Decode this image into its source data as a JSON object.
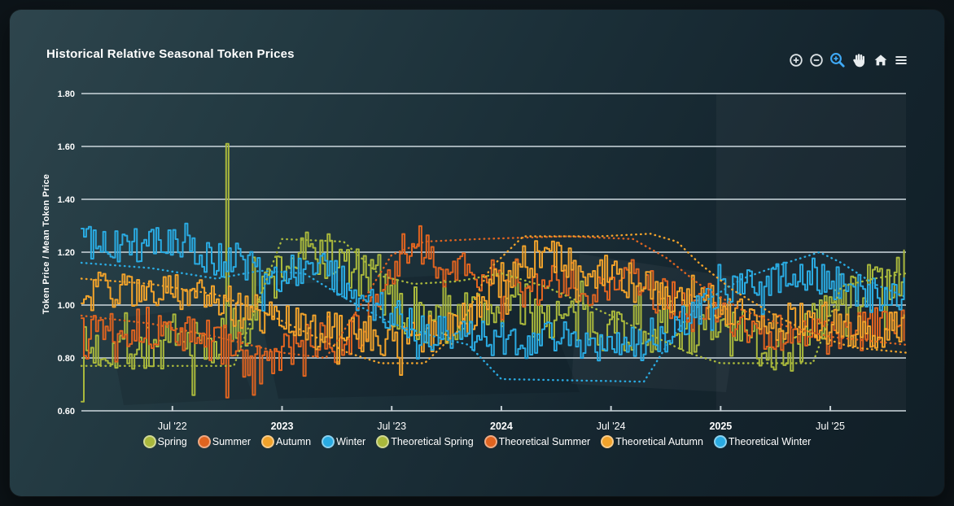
{
  "page": {
    "title": "Historical Relative Seasonal Token Prices"
  },
  "toolbar": {
    "icon_color": "#dde3e6",
    "active_color": "#3fa9f5",
    "icons": [
      "zoom-in-icon",
      "zoom-out-icon",
      "zoom-select-icon",
      "pan-icon",
      "reset-home-icon",
      "menu-icon"
    ]
  },
  "chart_data": {
    "type": "line",
    "title": "Historical Relative Seasonal Token Prices",
    "xlabel": "",
    "ylabel": "Token Price / Mean Token Price",
    "ylim": [
      0.6,
      1.8
    ],
    "x_domain": [
      2022.085,
      2025.845
    ],
    "grid": true,
    "legend_position": "bottom",
    "y_ticks": [
      {
        "label": "1.80",
        "value": 1.8
      },
      {
        "label": "1.60",
        "value": 1.6
      },
      {
        "label": "1.40",
        "value": 1.4
      },
      {
        "label": "1.20",
        "value": 1.2
      },
      {
        "label": "1.00",
        "value": 1.0
      },
      {
        "label": "0.80",
        "value": 0.8
      },
      {
        "label": "0.60",
        "value": 0.6
      }
    ],
    "x_ticks": [
      {
        "label": "Jul '22",
        "year": 2022.5,
        "bold": false
      },
      {
        "label": "2023",
        "year": 2023.0,
        "bold": true
      },
      {
        "label": "Jul '23",
        "year": 2023.5,
        "bold": false
      },
      {
        "label": "2024",
        "year": 2024.0,
        "bold": true
      },
      {
        "label": "Jul '24",
        "year": 2024.5,
        "bold": false
      },
      {
        "label": "2025",
        "year": 2025.0,
        "bold": true
      },
      {
        "label": "Jul '25",
        "year": 2025.5,
        "bold": false
      }
    ],
    "series": [
      {
        "name": "Spring",
        "color": "#a9b83c",
        "style": "solid",
        "noise": 0.1,
        "seed": 7,
        "anchors": [
          [
            2022.085,
            0.82
          ],
          [
            2022.25,
            0.85
          ],
          [
            2022.4,
            0.83
          ],
          [
            2022.55,
            0.85
          ],
          [
            2022.65,
            0.84
          ],
          [
            2022.73,
            0.88
          ],
          [
            2022.78,
            0.93
          ],
          [
            2022.87,
            1.0
          ],
          [
            2022.95,
            1.1
          ],
          [
            2023.06,
            1.18
          ],
          [
            2023.17,
            1.2
          ],
          [
            2023.28,
            1.15
          ],
          [
            2023.4,
            1.09
          ],
          [
            2023.5,
            1.01
          ],
          [
            2023.62,
            0.93
          ],
          [
            2023.75,
            0.95
          ],
          [
            2023.9,
            0.97
          ],
          [
            2024.02,
            1.0
          ],
          [
            2024.15,
            0.97
          ],
          [
            2024.3,
            0.94
          ],
          [
            2024.45,
            0.93
          ],
          [
            2024.6,
            0.91
          ],
          [
            2024.75,
            0.93
          ],
          [
            2024.9,
            0.91
          ],
          [
            2025.05,
            0.89
          ],
          [
            2025.2,
            0.85
          ],
          [
            2025.32,
            0.83
          ],
          [
            2025.42,
            0.92
          ],
          [
            2025.52,
            1.02
          ],
          [
            2025.65,
            1.06
          ],
          [
            2025.845,
            1.09
          ]
        ],
        "events": [
          [
            2022.75,
            1.61
          ]
        ]
      },
      {
        "name": "Summer",
        "color": "#e06420",
        "style": "solid",
        "noise": 0.08,
        "seed": 13,
        "anchors": [
          [
            2022.085,
            0.94
          ],
          [
            2022.3,
            0.92
          ],
          [
            2022.5,
            0.9
          ],
          [
            2022.65,
            0.87
          ],
          [
            2022.73,
            0.85
          ],
          [
            2022.8,
            0.82
          ],
          [
            2022.9,
            0.76
          ],
          [
            2023.0,
            0.82
          ],
          [
            2023.1,
            0.85
          ],
          [
            2023.25,
            0.86
          ],
          [
            2023.35,
            0.9
          ],
          [
            2023.45,
            1.0
          ],
          [
            2023.53,
            1.18
          ],
          [
            2023.6,
            1.24
          ],
          [
            2023.7,
            1.16
          ],
          [
            2023.85,
            1.11
          ],
          [
            2024.0,
            1.09
          ],
          [
            2024.15,
            1.06
          ],
          [
            2024.3,
            1.09
          ],
          [
            2024.45,
            1.06
          ],
          [
            2024.55,
            1.1
          ],
          [
            2024.7,
            1.05
          ],
          [
            2024.85,
            0.98
          ],
          [
            2025.0,
            0.95
          ],
          [
            2025.15,
            0.91
          ],
          [
            2025.35,
            0.89
          ],
          [
            2025.55,
            0.88
          ],
          [
            2025.7,
            0.91
          ],
          [
            2025.845,
            0.92
          ]
        ],
        "events": [
          [
            2022.75,
            0.65
          ],
          [
            2022.87,
            0.66
          ]
        ]
      },
      {
        "name": "Autumn",
        "color": "#f2a32b",
        "style": "solid",
        "noise": 0.075,
        "seed": 29,
        "anchors": [
          [
            2022.085,
            1.05
          ],
          [
            2022.3,
            1.06
          ],
          [
            2022.5,
            1.05
          ],
          [
            2022.65,
            1.03
          ],
          [
            2022.8,
            0.99
          ],
          [
            2022.95,
            0.94
          ],
          [
            2023.1,
            0.91
          ],
          [
            2023.3,
            0.89
          ],
          [
            2023.45,
            0.88
          ],
          [
            2023.6,
            0.87
          ],
          [
            2023.72,
            0.9
          ],
          [
            2023.85,
            0.96
          ],
          [
            2023.95,
            1.05
          ],
          [
            2024.1,
            1.16
          ],
          [
            2024.2,
            1.19
          ],
          [
            2024.35,
            1.14
          ],
          [
            2024.5,
            1.11
          ],
          [
            2024.65,
            1.07
          ],
          [
            2024.8,
            1.03
          ],
          [
            2024.95,
            1.01
          ],
          [
            2025.1,
            0.98
          ],
          [
            2025.25,
            0.94
          ],
          [
            2025.4,
            0.94
          ],
          [
            2025.55,
            0.9
          ],
          [
            2025.7,
            0.9
          ],
          [
            2025.845,
            0.91
          ]
        ],
        "events": []
      },
      {
        "name": "Winter",
        "color": "#2aabe2",
        "style": "solid",
        "noise": 0.07,
        "seed": 41,
        "anchors": [
          [
            2022.085,
            1.24
          ],
          [
            2022.25,
            1.23
          ],
          [
            2022.4,
            1.24
          ],
          [
            2022.55,
            1.21
          ],
          [
            2022.68,
            1.16
          ],
          [
            2022.8,
            1.17
          ],
          [
            2022.92,
            1.1
          ],
          [
            2023.05,
            1.14
          ],
          [
            2023.18,
            1.13
          ],
          [
            2023.32,
            1.06
          ],
          [
            2023.45,
            0.99
          ],
          [
            2023.55,
            0.94
          ],
          [
            2023.68,
            0.9
          ],
          [
            2023.8,
            0.88
          ],
          [
            2023.95,
            0.87
          ],
          [
            2024.1,
            0.86
          ],
          [
            2024.25,
            0.87
          ],
          [
            2024.4,
            0.82
          ],
          [
            2024.55,
            0.85
          ],
          [
            2024.68,
            0.86
          ],
          [
            2024.8,
            0.91
          ],
          [
            2024.92,
            0.99
          ],
          [
            2025.05,
            1.05
          ],
          [
            2025.2,
            1.1
          ],
          [
            2025.35,
            1.12
          ],
          [
            2025.5,
            1.1
          ],
          [
            2025.62,
            1.05
          ],
          [
            2025.75,
            1.02
          ],
          [
            2025.845,
            1.04
          ]
        ],
        "events": []
      },
      {
        "name": "Theoretical Spring",
        "color": "#a9b83c",
        "style": "dotted",
        "anchors": [
          [
            2022.085,
            0.77
          ],
          [
            2022.78,
            0.77
          ],
          [
            2023.0,
            1.25
          ],
          [
            2023.28,
            1.24
          ],
          [
            2023.45,
            1.11
          ],
          [
            2023.6,
            1.08
          ],
          [
            2023.8,
            1.09
          ],
          [
            2024.0,
            1.12
          ],
          [
            2024.2,
            1.07
          ],
          [
            2024.5,
            0.96
          ],
          [
            2024.7,
            0.88
          ],
          [
            2024.85,
            0.82
          ],
          [
            2025.0,
            0.78
          ],
          [
            2025.42,
            0.78
          ],
          [
            2025.55,
            1.07
          ],
          [
            2025.7,
            1.1
          ],
          [
            2025.845,
            1.12
          ]
        ]
      },
      {
        "name": "Theoretical Summer",
        "color": "#e06420",
        "style": "dotted",
        "anchors": [
          [
            2022.085,
            0.96
          ],
          [
            2022.4,
            0.93
          ],
          [
            2022.7,
            0.88
          ],
          [
            2023.0,
            0.82
          ],
          [
            2023.2,
            0.8
          ],
          [
            2023.35,
            0.99
          ],
          [
            2023.5,
            1.19
          ],
          [
            2023.65,
            1.24
          ],
          [
            2023.9,
            1.25
          ],
          [
            2024.3,
            1.26
          ],
          [
            2024.6,
            1.25
          ],
          [
            2024.75,
            1.18
          ],
          [
            2024.9,
            1.08
          ],
          [
            2025.1,
            0.98
          ],
          [
            2025.3,
            0.92
          ],
          [
            2025.5,
            0.88
          ],
          [
            2025.845,
            0.85
          ]
        ]
      },
      {
        "name": "Theoretical Autumn",
        "color": "#f2a32b",
        "style": "dotted",
        "anchors": [
          [
            2022.085,
            1.1
          ],
          [
            2022.4,
            1.08
          ],
          [
            2022.7,
            1.04
          ],
          [
            2022.9,
            0.98
          ],
          [
            2023.1,
            0.9
          ],
          [
            2023.3,
            0.82
          ],
          [
            2023.45,
            0.78
          ],
          [
            2023.65,
            0.78
          ],
          [
            2023.8,
            0.9
          ],
          [
            2023.95,
            1.14
          ],
          [
            2024.1,
            1.26
          ],
          [
            2024.45,
            1.26
          ],
          [
            2024.68,
            1.27
          ],
          [
            2024.8,
            1.24
          ],
          [
            2024.9,
            1.16
          ],
          [
            2025.05,
            1.06
          ],
          [
            2025.25,
            0.96
          ],
          [
            2025.45,
            0.88
          ],
          [
            2025.6,
            0.84
          ],
          [
            2025.845,
            0.82
          ]
        ]
      },
      {
        "name": "Theoretical Winter",
        "color": "#2aabe2",
        "style": "dotted",
        "anchors": [
          [
            2022.085,
            1.16
          ],
          [
            2022.4,
            1.14
          ],
          [
            2022.7,
            1.1
          ],
          [
            2022.9,
            1.13
          ],
          [
            2023.1,
            1.12
          ],
          [
            2023.3,
            1.02
          ],
          [
            2023.5,
            0.93
          ],
          [
            2023.7,
            0.88
          ],
          [
            2023.85,
            0.85
          ],
          [
            2024.0,
            0.72
          ],
          [
            2024.65,
            0.71
          ],
          [
            2024.78,
            0.88
          ],
          [
            2024.9,
            1.0
          ],
          [
            2025.1,
            1.1
          ],
          [
            2025.3,
            1.16
          ],
          [
            2025.45,
            1.2
          ],
          [
            2025.55,
            1.16
          ],
          [
            2025.7,
            1.08
          ],
          [
            2025.845,
            1.03
          ]
        ]
      }
    ]
  }
}
